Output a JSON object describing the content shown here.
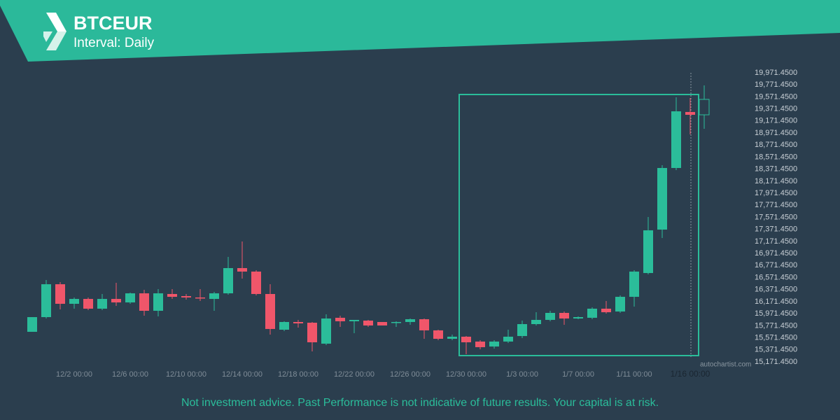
{
  "header": {
    "title": "BTCEUR",
    "subtitle": "Interval: Daily"
  },
  "footer": "Not investment advice. Past Performance is not indicative of future results. Your capital is at risk.",
  "watermark": "autochartist.com",
  "chart_data": {
    "type": "candlestick",
    "categories": [
      null,
      null,
      null,
      "12/2 00:00",
      null,
      null,
      null,
      "12/6 00:00",
      null,
      null,
      null,
      "12/10 00:00",
      null,
      null,
      null,
      "12/14 00:00",
      null,
      null,
      null,
      "12/18 00:00",
      null,
      null,
      null,
      "12/22 00:00",
      null,
      null,
      null,
      "12/26 00:00",
      null,
      null,
      null,
      "12/30 00:00",
      null,
      null,
      null,
      "1/3 00:00",
      null,
      null,
      null,
      "1/7 00:00",
      null,
      null,
      null,
      "1/11 00:00",
      null,
      null,
      null,
      "1/16 00:00",
      null
    ],
    "open": [
      15671,
      15915,
      16461,
      16136,
      16217,
      16055,
      16217,
      16159,
      16310,
      16020,
      16299,
      16264,
      16241,
      16217,
      16310,
      16729,
      16671,
      16299,
      15706,
      15834,
      15822,
      15474,
      15904,
      15846,
      15857,
      15834,
      15822,
      15834,
      15880,
      15695,
      15555,
      15590,
      15509,
      15427,
      15509,
      15601,
      15799,
      15869,
      15985,
      15892,
      15904,
      16055,
      16008,
      16252,
      16647,
      17368,
      18391,
      19321,
      19274
    ],
    "high": [
      15915,
      16531,
      16496,
      16241,
      16241,
      16299,
      16485,
      16322,
      16369,
      16380,
      16380,
      16299,
      16380,
      16334,
      16915,
      17170,
      16694,
      16461,
      15846,
      15869,
      15834,
      15962,
      15939,
      15869,
      15869,
      15834,
      15846,
      15892,
      15892,
      15706,
      15625,
      15601,
      15532,
      15532,
      15706,
      15857,
      15996,
      16020,
      16008,
      15927,
      16078,
      16183,
      16276,
      16694,
      17577,
      18437,
      19565,
      19553,
      19762
    ],
    "low": [
      15671,
      15892,
      16043,
      16055,
      16031,
      16031,
      16101,
      16136,
      15939,
      15927,
      16217,
      16206,
      16183,
      16020,
      16287,
      16555,
      16276,
      15625,
      15683,
      15741,
      15346,
      15451,
      15753,
      15648,
      15753,
      15776,
      15753,
      15787,
      15555,
      15532,
      15532,
      15299,
      15381,
      15392,
      15485,
      15567,
      15776,
      15846,
      15787,
      15880,
      15880,
      15973,
      15985,
      16090,
      16624,
      17229,
      18356,
      18949,
      19042
    ],
    "close": [
      15915,
      16461,
      16136,
      16217,
      16055,
      16217,
      16159,
      16310,
      16020,
      16310,
      16252,
      16241,
      16229,
      16310,
      16729,
      16671,
      16299,
      15718,
      15834,
      15811,
      15497,
      15892,
      15846,
      15869,
      15776,
      15776,
      15834,
      15880,
      15695,
      15555,
      15590,
      15497,
      15416,
      15509,
      15590,
      15799,
      15869,
      15985,
      15892,
      15915,
      16055,
      15996,
      16252,
      16671,
      17356,
      18391,
      19332,
      19274,
      19530
    ],
    "up_color": "#2bbd9a",
    "down_color": "#f0566a",
    "pattern_high": 19611,
    "pattern_low": 15276,
    "ylim": [
      15171.45,
      19971.45
    ],
    "yticks": [
      {
        "value": 19971.45,
        "label": "19,971.4500"
      },
      {
        "value": 19771.45,
        "label": "19,771.4500"
      },
      {
        "value": 19571.45,
        "label": "19,571.4500"
      },
      {
        "value": 19371.45,
        "label": "19,371.4500"
      },
      {
        "value": 19171.45,
        "label": "19,171.4500"
      },
      {
        "value": 18971.45,
        "label": "18,971.4500"
      },
      {
        "value": 18771.45,
        "label": "18,771.4500"
      },
      {
        "value": 18571.45,
        "label": "18,571.4500"
      },
      {
        "value": 18371.45,
        "label": "18,371.4500"
      },
      {
        "value": 18171.45,
        "label": "18,171.4500"
      },
      {
        "value": 17971.45,
        "label": "17,971.4500"
      },
      {
        "value": 17771.45,
        "label": "17,771.4500"
      },
      {
        "value": 17571.45,
        "label": "17,571.4500"
      },
      {
        "value": 17371.45,
        "label": "17,371.4500"
      },
      {
        "value": 17171.45,
        "label": "17,171.4500"
      },
      {
        "value": 16971.45,
        "label": "16,971.4500"
      },
      {
        "value": 16771.45,
        "label": "16,771.4500"
      },
      {
        "value": 16571.45,
        "label": "16,571.4500"
      },
      {
        "value": 16371.45,
        "label": "16,371.4500"
      },
      {
        "value": 16171.45,
        "label": "16,171.4500"
      },
      {
        "value": 15971.45,
        "label": "15,971.4500"
      },
      {
        "value": 15771.45,
        "label": "15,771.4500"
      },
      {
        "value": 15571.45,
        "label": "15,571.4500"
      },
      {
        "value": 15371.45,
        "label": "15,371.4500"
      },
      {
        "value": 15171.45,
        "label": "15,171.4500"
      }
    ]
  }
}
